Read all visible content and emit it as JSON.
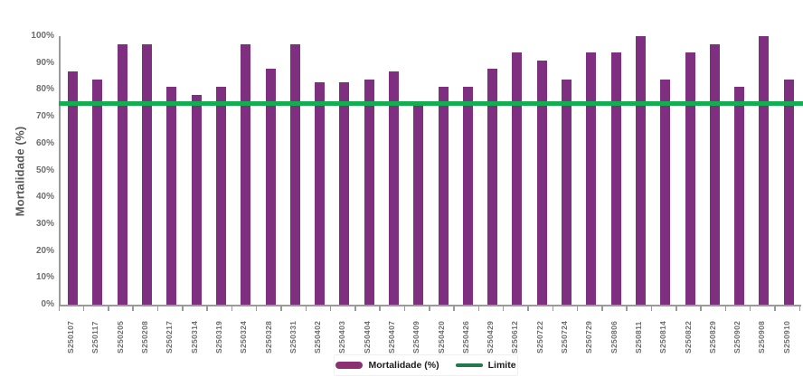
{
  "y_axis": {
    "title": "Mortalidade (%)",
    "tick_suffix": "%"
  },
  "legend": {
    "mortalidade_label": "Mortalidade (%)",
    "limite_label": "Limite"
  },
  "colors": {
    "bar": "#7e2f80",
    "limit_line": "#12ae50",
    "legend_bar_swatch": "#8b3173",
    "legend_line_swatch": "#217a4b",
    "axis": "#9a9a9a",
    "tick_text": "#6d6d6d",
    "y_title_text": "#595959",
    "legend_text": "#1c1c1c",
    "background": "#ffffff"
  },
  "chart_data": {
    "type": "bar",
    "title": "",
    "xlabel": "",
    "ylabel": "Mortalidade (%)",
    "ylim": [
      0,
      100
    ],
    "yticks": [
      0,
      10,
      20,
      30,
      40,
      50,
      60,
      70,
      80,
      90,
      100
    ],
    "grid": false,
    "legend_position": "bottom-center",
    "categories": [
      "S250107",
      "S250117",
      "S250205",
      "S250208",
      "S250217",
      "S250314",
      "S250319",
      "S250324",
      "S250328",
      "S250331",
      "S250402",
      "S250403",
      "S250404",
      "S250407",
      "S250409",
      "S250420",
      "S250426",
      "S250429",
      "S250612",
      "S250722",
      "S250724",
      "S250729",
      "S250806",
      "S250811",
      "S250814",
      "S250822",
      "S250829",
      "S250902",
      "S250908",
      "S250910"
    ],
    "series": [
      {
        "name": "Mortalidade (%)",
        "values": [
          87,
          84,
          97,
          97,
          81,
          78,
          81,
          97,
          88,
          97,
          83,
          83,
          84,
          87,
          74,
          81,
          81,
          88,
          94,
          91,
          84,
          94,
          94,
          100,
          84,
          94,
          97,
          81,
          100,
          84
        ]
      }
    ],
    "limit_line": {
      "name": "Limite",
      "value": 75
    }
  }
}
